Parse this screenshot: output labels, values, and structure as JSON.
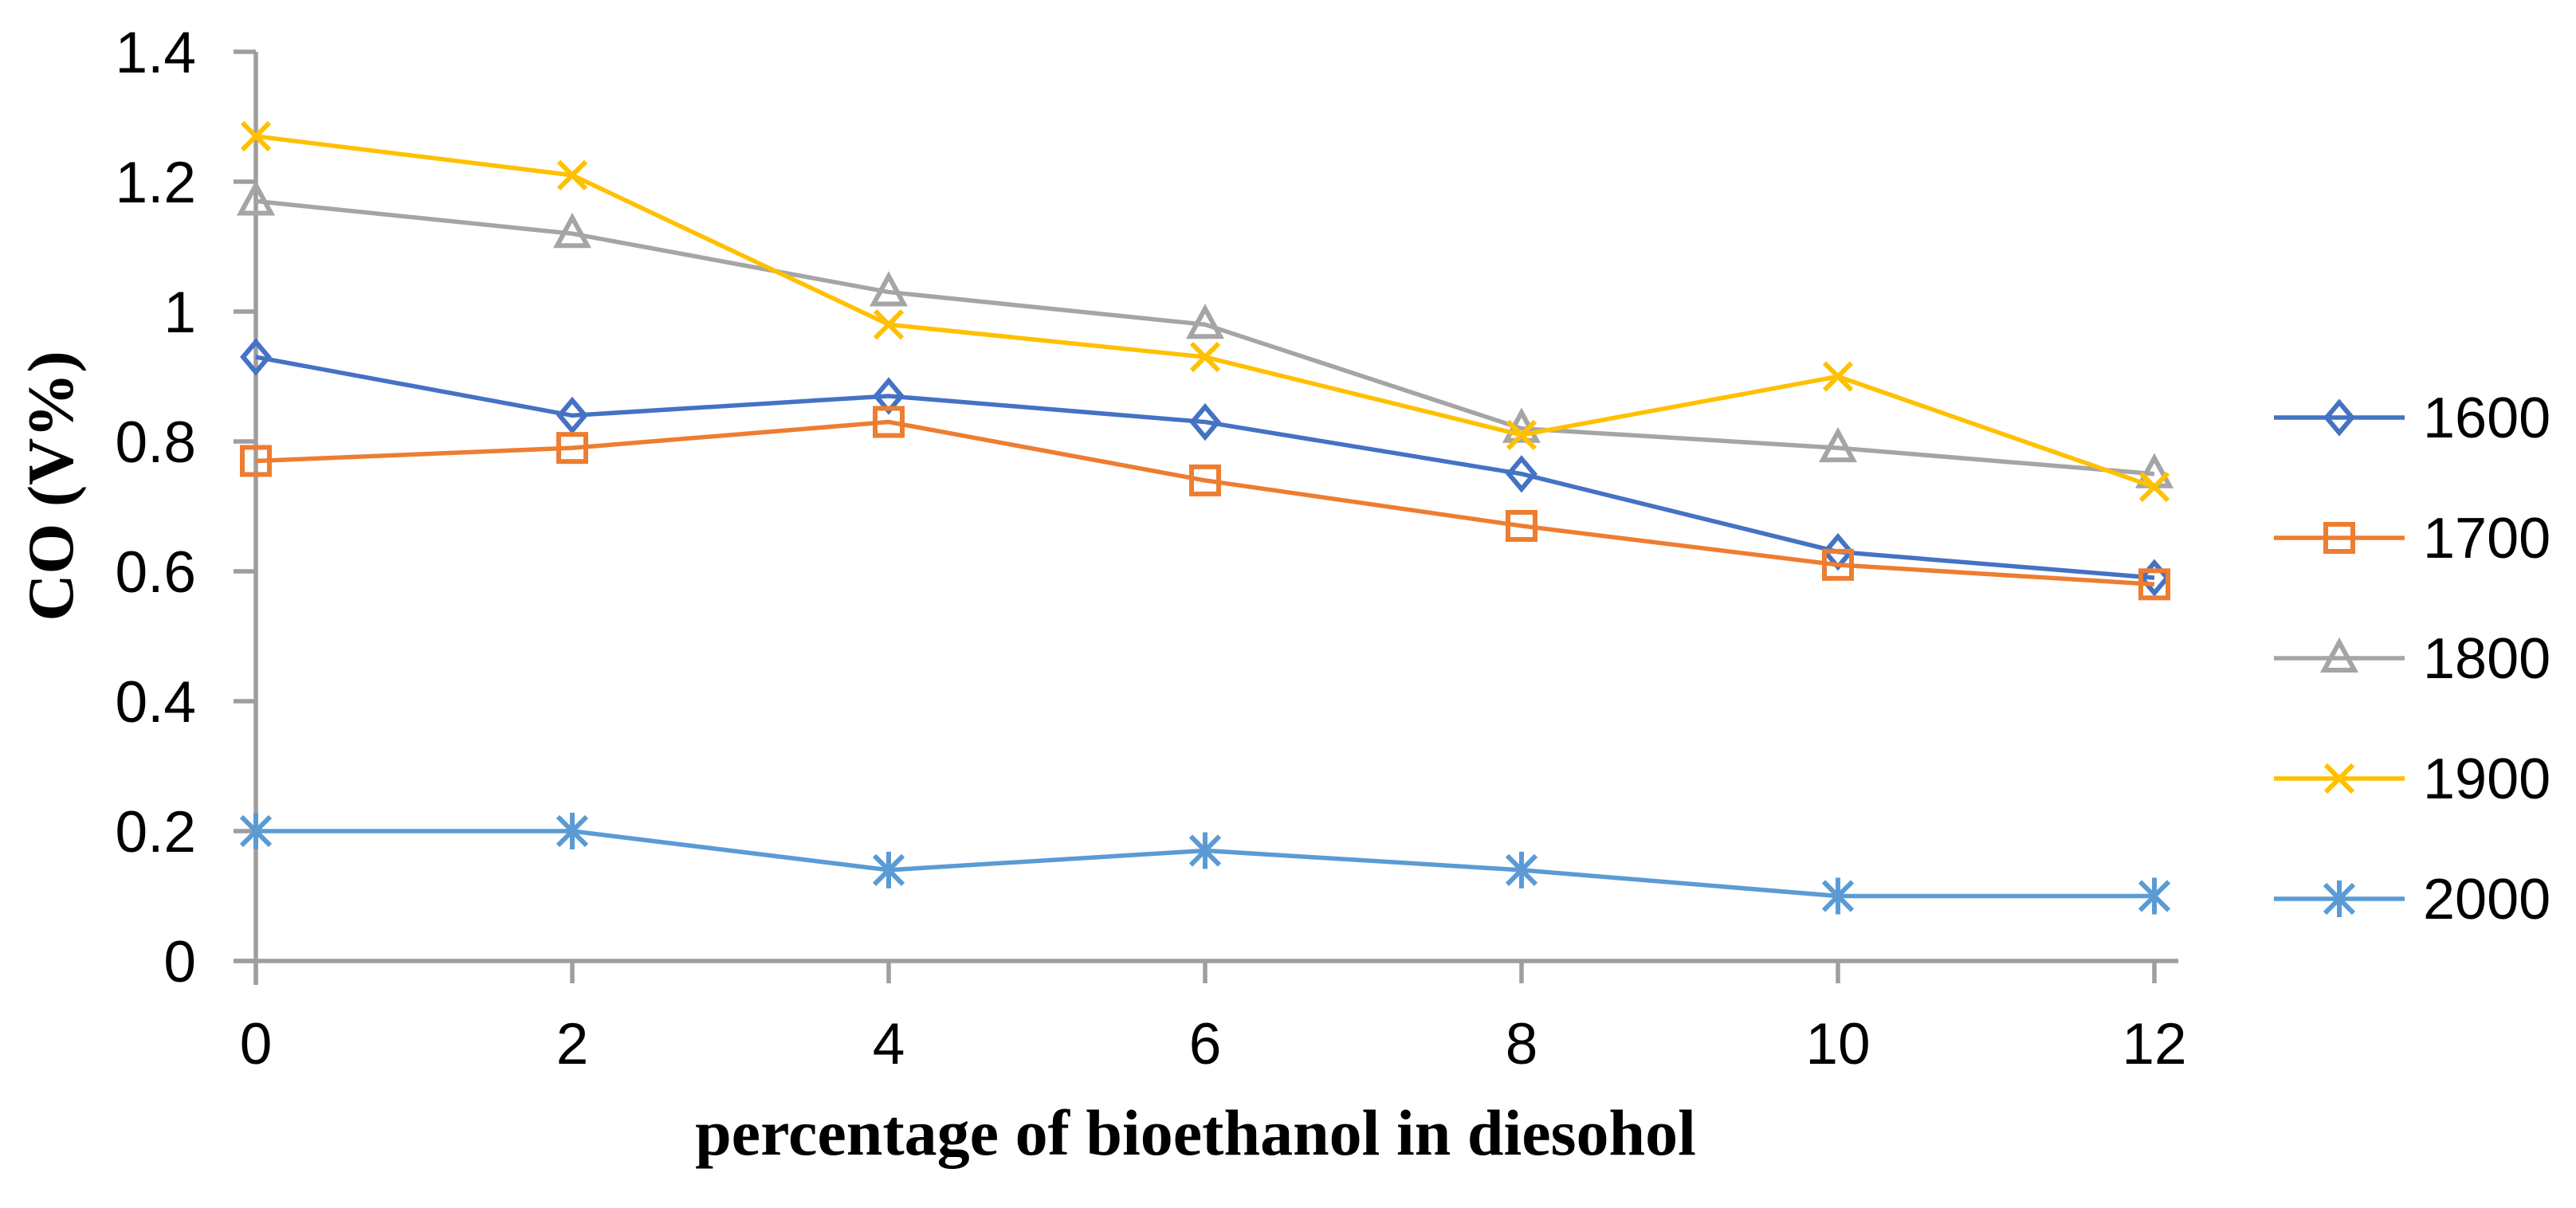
{
  "chart_data": {
    "type": "line",
    "title": "",
    "xlabel": "percentage of bioethanol in diesohol",
    "ylabel": "CO (V%)",
    "x": [
      0,
      2,
      4,
      6,
      8,
      10,
      12
    ],
    "xtick_labels": [
      "0",
      "2",
      "4",
      "6",
      "8",
      "10",
      "12"
    ],
    "ytick_labels": [
      "0",
      "0.2",
      "0.4",
      "0.6",
      "0.8",
      "1",
      "1.2",
      "1.4"
    ],
    "xlim": [
      0,
      12
    ],
    "ylim": [
      0,
      1.4
    ],
    "ytick_step": 0.2,
    "grid": false,
    "legend_position": "right",
    "axis_color": "#9e9e9e",
    "text_color": "#000000",
    "series": [
      {
        "name": "1600",
        "marker": "diamond",
        "color": "#4472C4",
        "values": [
          0.93,
          0.84,
          0.87,
          0.83,
          0.75,
          0.63,
          0.59
        ]
      },
      {
        "name": "1700",
        "marker": "square",
        "color": "#ED7D31",
        "values": [
          0.77,
          0.79,
          0.83,
          0.74,
          0.67,
          0.61,
          0.58
        ]
      },
      {
        "name": "1800",
        "marker": "triangle",
        "color": "#A5A5A5",
        "values": [
          1.17,
          1.12,
          1.03,
          0.98,
          0.82,
          0.79,
          0.75
        ]
      },
      {
        "name": "1900",
        "marker": "x",
        "color": "#FFC000",
        "values": [
          1.27,
          1.21,
          0.98,
          0.93,
          0.81,
          0.9,
          0.73
        ]
      },
      {
        "name": "2000",
        "marker": "asterisk",
        "color": "#5B9BD5",
        "values": [
          0.2,
          0.2,
          0.14,
          0.17,
          0.14,
          0.1,
          0.1
        ]
      }
    ]
  }
}
